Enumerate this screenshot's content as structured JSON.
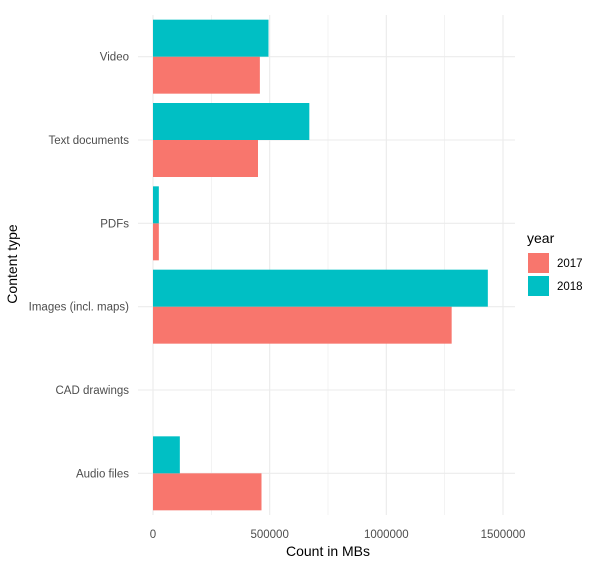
{
  "chart_data": {
    "type": "bar",
    "orientation": "horizontal",
    "categories": [
      "Audio files",
      "CAD drawings",
      "Images (incl. maps)",
      "PDFs",
      "Text documents",
      "Video"
    ],
    "series": [
      {
        "name": "2017",
        "color": "#F8766D",
        "values": [
          465000,
          0,
          1280000,
          25000,
          450000,
          458000
        ]
      },
      {
        "name": "2018",
        "color": "#00BFC4",
        "values": [
          115000,
          0,
          1435000,
          25000,
          670000,
          495000
        ]
      }
    ],
    "xlabel": "Count in MBs",
    "ylabel": "Content type",
    "xlim": [
      0,
      1500000
    ],
    "xticks": [
      0,
      500000,
      1000000,
      1500000
    ],
    "xtick_labels": [
      "0",
      "500000",
      "1000000",
      "1500000"
    ],
    "legend": {
      "title": "year",
      "position": "right",
      "items": [
        "2017",
        "2018"
      ]
    },
    "grid": true,
    "background": "#ffffff",
    "grid_color": "#ebebeb"
  }
}
